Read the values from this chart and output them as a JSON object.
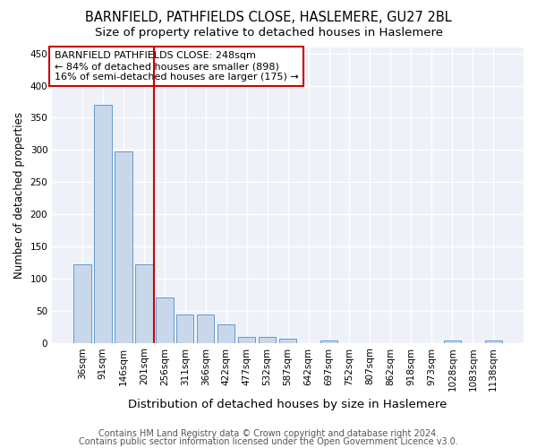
{
  "title1": "BARNFIELD, PATHFIELDS CLOSE, HASLEMERE, GU27 2BL",
  "title2": "Size of property relative to detached houses in Haslemere",
  "xlabel": "Distribution of detached houses by size in Haslemere",
  "ylabel": "Number of detached properties",
  "categories": [
    "36sqm",
    "91sqm",
    "146sqm",
    "201sqm",
    "256sqm",
    "311sqm",
    "366sqm",
    "422sqm",
    "477sqm",
    "532sqm",
    "587sqm",
    "642sqm",
    "697sqm",
    "752sqm",
    "807sqm",
    "862sqm",
    "918sqm",
    "973sqm",
    "1028sqm",
    "1083sqm",
    "1138sqm"
  ],
  "values": [
    122,
    370,
    297,
    122,
    70,
    44,
    44,
    28,
    9,
    9,
    6,
    0,
    3,
    0,
    0,
    0,
    0,
    0,
    3,
    0,
    3
  ],
  "bar_color": "#c8d8ea",
  "bar_edge_color": "#6699cc",
  "vline_color": "#cc0000",
  "vline_x_index": 4,
  "annotation_box_text": "BARNFIELD PATHFIELDS CLOSE: 248sqm\n← 84% of detached houses are smaller (898)\n16% of semi-detached houses are larger (175) →",
  "annotation_box_color": "#cc0000",
  "ylim": [
    0,
    460
  ],
  "yticks": [
    0,
    50,
    100,
    150,
    200,
    250,
    300,
    350,
    400,
    450
  ],
  "footer1": "Contains HM Land Registry data © Crown copyright and database right 2024.",
  "footer2": "Contains public sector information licensed under the Open Government Licence v3.0.",
  "bg_color": "#eef2f8",
  "grid_color": "#ffffff",
  "title1_fontsize": 10.5,
  "title2_fontsize": 9.5,
  "xlabel_fontsize": 9.5,
  "ylabel_fontsize": 8.5,
  "tick_fontsize": 7.5,
  "ann_fontsize": 8,
  "footer_fontsize": 7
}
